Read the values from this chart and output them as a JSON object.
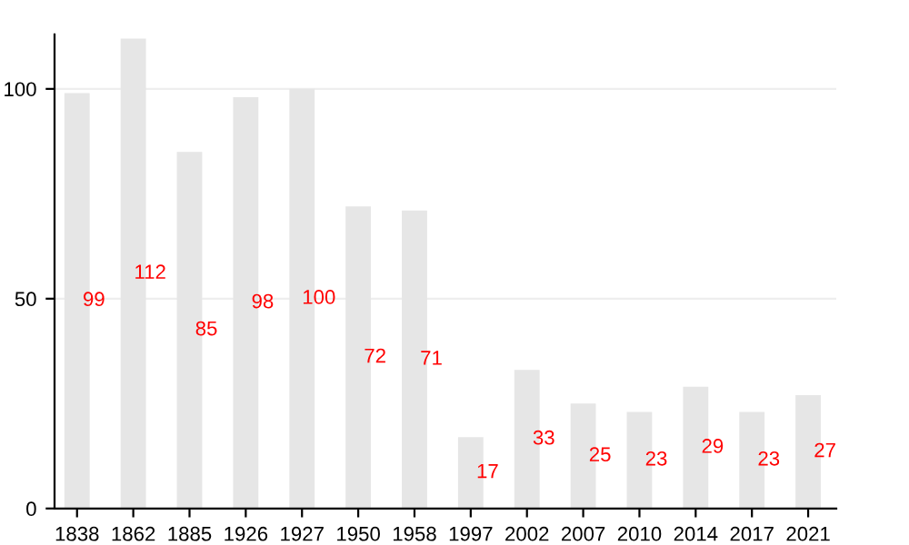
{
  "chart_data": {
    "type": "bar",
    "categories": [
      "1838",
      "1862",
      "1885",
      "1926",
      "1927",
      "1950",
      "1958",
      "1997",
      "2002",
      "2007",
      "2010",
      "2014",
      "2017",
      "2021"
    ],
    "values": [
      99,
      112,
      85,
      98,
      100,
      72,
      71,
      17,
      33,
      25,
      23,
      29,
      23,
      27
    ],
    "color": "#e6e6e6",
    "ylim": [
      0,
      113
    ],
    "yticks": [
      0,
      50,
      100
    ],
    "grid": "y",
    "data_labels": true
  }
}
